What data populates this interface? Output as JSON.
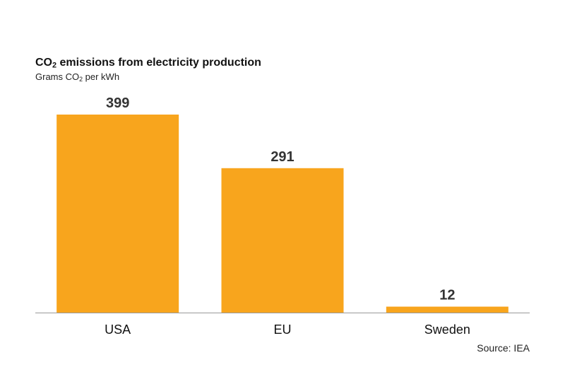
{
  "chart_data": {
    "type": "bar",
    "title": {
      "prefix": "CO",
      "sub": "2",
      "suffix": " emissions from electricity production"
    },
    "subtitle": {
      "prefix": "Grams CO",
      "sub": "2",
      "suffix": " per kWh"
    },
    "categories": [
      "USA",
      "EU",
      "Sweden"
    ],
    "values": [
      399,
      291,
      12
    ],
    "value_labels": [
      "399",
      "291",
      "12"
    ],
    "ylim": [
      0,
      399
    ],
    "grid": false,
    "legend": "none",
    "source": "Source: IEA"
  },
  "colors": {
    "bar": "#F8A51D",
    "axis": "#999999",
    "value_text": "#333333",
    "category_text": "#111111"
  }
}
